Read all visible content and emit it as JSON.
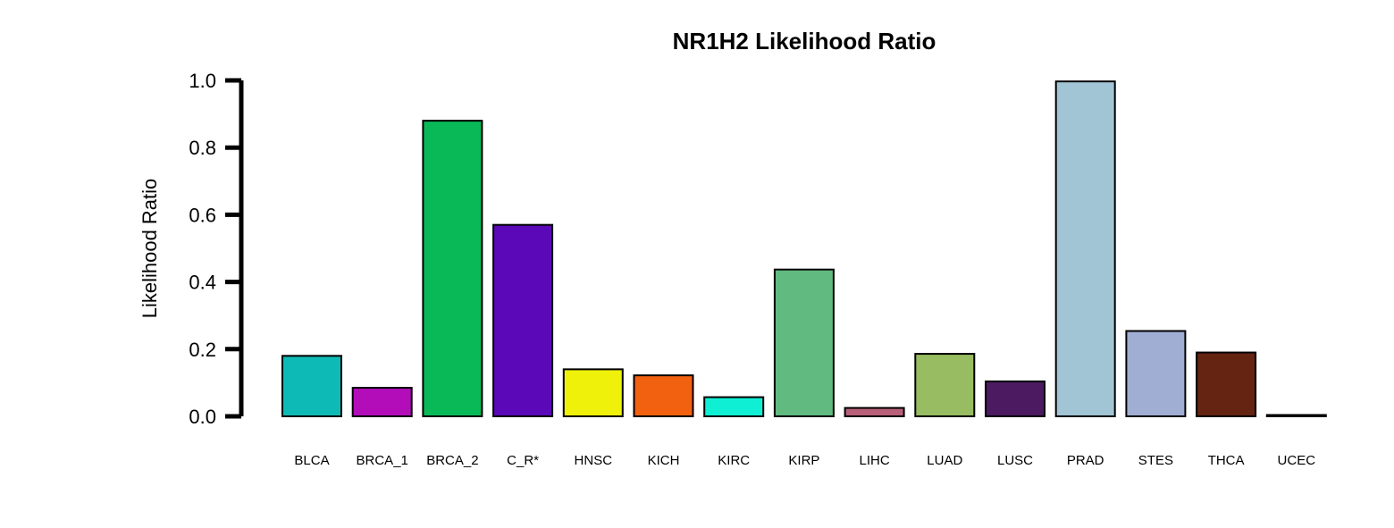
{
  "chart_data": {
    "type": "bar",
    "title": "NR1H2 Likelihood Ratio",
    "xlabel": "",
    "ylabel": "Likelihood Ratio",
    "ylim": [
      0,
      1.0
    ],
    "yticks": [
      "0.0",
      "0.2",
      "0.4",
      "0.6",
      "0.8",
      "1.0"
    ],
    "categories": [
      "BLCA",
      "BRCA_1",
      "BRCA_2",
      "C_R*",
      "HNSC",
      "KICH",
      "KIRC",
      "KIRP",
      "LIHC",
      "LUAD",
      "LUSC",
      "PRAD",
      "STES",
      "THCA",
      "UCEC"
    ],
    "values": [
      0.18,
      0.085,
      0.88,
      0.57,
      0.14,
      0.122,
      0.057,
      0.437,
      0.025,
      0.186,
      0.104,
      0.997,
      0.254,
      0.19,
      0.004
    ],
    "colors": [
      "#0dbab6",
      "#b20db9",
      "#09b957",
      "#5b09b8",
      "#eff10b",
      "#f2610f",
      "#0fefd4",
      "#61ba80",
      "#b86079",
      "#97bc61",
      "#4b1a60",
      "#a1c5d4",
      "#a1aed4",
      "#652312",
      "#0d0d2b"
    ],
    "grid": false,
    "legend": "none"
  }
}
